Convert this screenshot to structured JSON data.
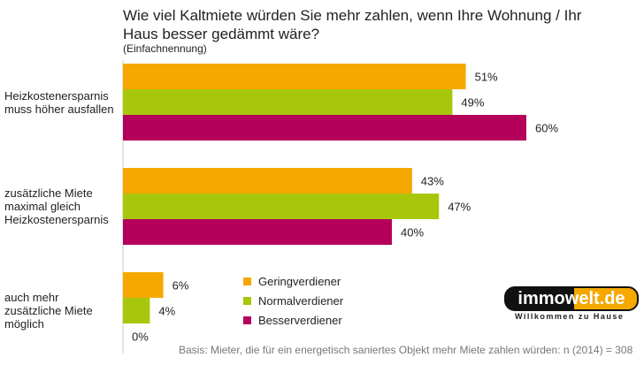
{
  "chart_data": {
    "type": "bar",
    "orientation": "horizontal",
    "title": "Wie viel Kaltmiete würden Sie mehr zahlen, wenn Ihre Wohnung / Ihr Haus besser gedämmt wäre?",
    "subtitle": "(Einfachnennung)",
    "categories": [
      [
        "Heizkostenersparnis",
        "muss höher ausfallen"
      ],
      [
        "zusätzliche Miete",
        "maximal gleich",
        "Heizkostenersparnis"
      ],
      [
        "auch mehr",
        "zusätzliche Miete",
        "möglich"
      ]
    ],
    "series": [
      {
        "name": "Geringverdiener",
        "color": "#f5a800",
        "values": [
          51,
          43,
          6
        ]
      },
      {
        "name": "Normalverdiener",
        "color": "#a8c70a",
        "values": [
          49,
          47,
          4
        ]
      },
      {
        "name": "Besserverdiener",
        "color": "#b5005b",
        "values": [
          60,
          40,
          0
        ]
      }
    ],
    "unit": "%",
    "legend": "bottom-center",
    "note": "Basis: Mieter, die für ein energetisch saniertes Objekt mehr Miete zahlen würden: n (2014) = 308"
  },
  "logo": {
    "text": "immowelt.de",
    "tagline": "Willkommen zu Hause"
  }
}
